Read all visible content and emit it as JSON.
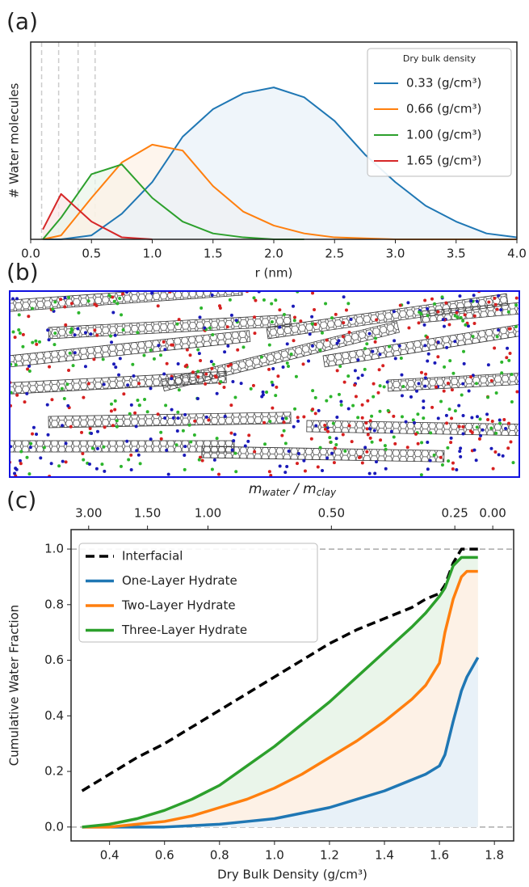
{
  "chart_data": [
    {
      "type": "line",
      "panel": "(a)",
      "x_label": "r (nm)",
      "y_label": "# Water molecules",
      "x": [
        0.1,
        0.25,
        0.5,
        0.75,
        1.0,
        1.25,
        1.5,
        1.75,
        2.0,
        2.25,
        2.5,
        2.75,
        3.0,
        3.25,
        3.5,
        3.75,
        4.0
      ],
      "xlim": [
        0,
        4
      ],
      "ylim": [
        0,
        100
      ],
      "xticks": [
        {
          "value": 0,
          "label": "0.0"
        },
        0.5,
        {
          "value": 1,
          "label": "1.0"
        },
        1.5,
        {
          "value": 2,
          "label": "2.0"
        },
        2.5,
        {
          "value": 3,
          "label": "3.0"
        },
        3.5,
        {
          "value": 4,
          "label": "4.0"
        }
      ],
      "vlines": [
        0.09,
        0.23,
        0.39,
        0.53
      ],
      "legend_title": "Dry bulk density",
      "legend": "upper right",
      "fill": true,
      "series": [
        {
          "name": "0.33 (g/cm³)",
          "color": "#1f77b4",
          "values": [
            0,
            0,
            2,
            13,
            29,
            52,
            66,
            74,
            77,
            72,
            60,
            43,
            29,
            17,
            9,
            3,
            1
          ]
        },
        {
          "name": "0.66 (g/cm³)",
          "color": "#ff7f0e",
          "values": [
            0,
            2,
            21,
            39,
            48,
            45,
            27,
            14,
            7,
            3,
            1,
            0.5,
            0,
            0,
            0,
            0,
            0
          ]
        },
        {
          "name": "1.00 (g/cm³)",
          "color": "#2ca02c",
          "values": [
            0,
            11,
            33,
            38,
            21,
            9,
            3,
            1,
            0,
            0,
            null,
            null,
            null,
            null,
            null,
            null,
            null
          ]
        },
        {
          "name": "1.65 (g/cm³)",
          "color": "#d62728",
          "values": [
            5,
            23,
            9,
            1,
            0,
            null,
            null,
            null,
            null,
            null,
            null,
            null,
            null,
            null,
            null,
            null,
            null
          ]
        }
      ]
    },
    {
      "type": "line",
      "panel": "(c)",
      "x_label": "Dry Bulk Density (g/cm³)",
      "y_label": "Cumulative Water Fraction",
      "x2_label_parts": [
        "m",
        "water",
        " / ",
        "m",
        "clay"
      ],
      "x": [
        0.3,
        0.4,
        0.5,
        0.6,
        0.7,
        0.8,
        0.9,
        1.0,
        1.1,
        1.2,
        1.3,
        1.4,
        1.5,
        1.55,
        1.6,
        1.62,
        1.65,
        1.68,
        1.7,
        1.74
      ],
      "xlim": [
        0.26,
        1.87
      ],
      "ylim": [
        -0.05,
        1.07
      ],
      "xticks": [
        0.4,
        0.6,
        0.8,
        {
          "value": 1,
          "label": "1.0"
        },
        1.2,
        1.4,
        1.6,
        1.8
      ],
      "yticks": [
        {
          "value": 0,
          "label": "0.0"
        },
        0.2,
        0.4,
        0.6,
        0.8,
        {
          "value": 1,
          "label": "1.0"
        }
      ],
      "x2ticks": [
        {
          "value": 0.324,
          "label": "3.00"
        },
        {
          "value": 0.538,
          "label": "1.50"
        },
        {
          "value": 0.758,
          "label": "1.00"
        },
        {
          "value": 1.207,
          "label": "0.50"
        },
        {
          "value": 1.656,
          "label": "0.25"
        },
        {
          "value": 1.794,
          "label": "0.00"
        }
      ],
      "hlines": [
        0,
        1
      ],
      "legend": "upper left",
      "fill": true,
      "series": [
        {
          "name": "Interfacial",
          "color": "#000000",
          "dashed": true,
          "values": [
            0.13,
            0.19,
            0.25,
            0.3,
            0.36,
            0.42,
            0.48,
            0.54,
            0.6,
            0.66,
            0.71,
            0.75,
            0.79,
            0.82,
            0.84,
            0.87,
            0.95,
            1.0,
            1.0,
            1.0
          ]
        },
        {
          "name": "One-Layer Hydrate",
          "color": "#1f77b4",
          "values": [
            0,
            0,
            0,
            0,
            0.005,
            0.01,
            0.02,
            0.03,
            0.05,
            0.07,
            0.1,
            0.13,
            0.17,
            0.19,
            0.22,
            0.26,
            0.38,
            0.49,
            0.54,
            0.61
          ]
        },
        {
          "name": "Two-Layer Hydrate",
          "color": "#ff7f0e",
          "values": [
            0,
            0,
            0.01,
            0.02,
            0.04,
            0.07,
            0.1,
            0.14,
            0.19,
            0.25,
            0.31,
            0.38,
            0.46,
            0.51,
            0.59,
            0.7,
            0.82,
            0.9,
            0.92,
            0.92
          ]
        },
        {
          "name": "Three-Layer Hydrate",
          "color": "#2ca02c",
          "values": [
            0,
            0.01,
            0.03,
            0.06,
            0.1,
            0.15,
            0.22,
            0.29,
            0.37,
            0.45,
            0.54,
            0.63,
            0.72,
            0.77,
            0.83,
            0.86,
            0.94,
            0.97,
            0.97,
            0.97
          ]
        }
      ]
    }
  ],
  "image_panel": {
    "label": "(b)"
  }
}
